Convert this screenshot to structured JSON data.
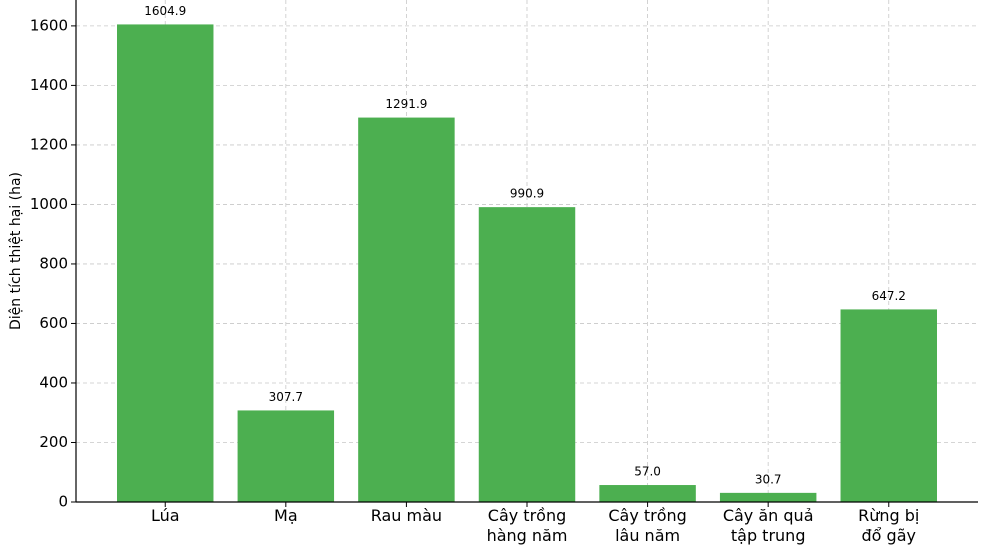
{
  "chart_data": {
    "type": "bar",
    "y_label": "Diện tích thiệt hại (ha)",
    "categories": [
      "Lúa",
      "Mạ",
      "Rau màu",
      "Cây trồng\nhàng năm",
      "Cây trồng\nlâu năm",
      "Cây ăn quả\ntập trung",
      "Rừng bị\nđổ gãy"
    ],
    "values": [
      1604.9,
      307.7,
      1291.9,
      990.9,
      57,
      30.7,
      647.2
    ],
    "value_labels": [
      "1604.9",
      "307.7",
      "1291.9",
      "990.9",
      "57.0",
      "30.7",
      "647.2"
    ],
    "color": "#4caf50",
    "ylim": [
      0,
      1687
    ],
    "yticks": [
      0,
      200,
      400,
      600,
      800,
      1000,
      1200,
      1400,
      1600
    ],
    "grid": true
  }
}
